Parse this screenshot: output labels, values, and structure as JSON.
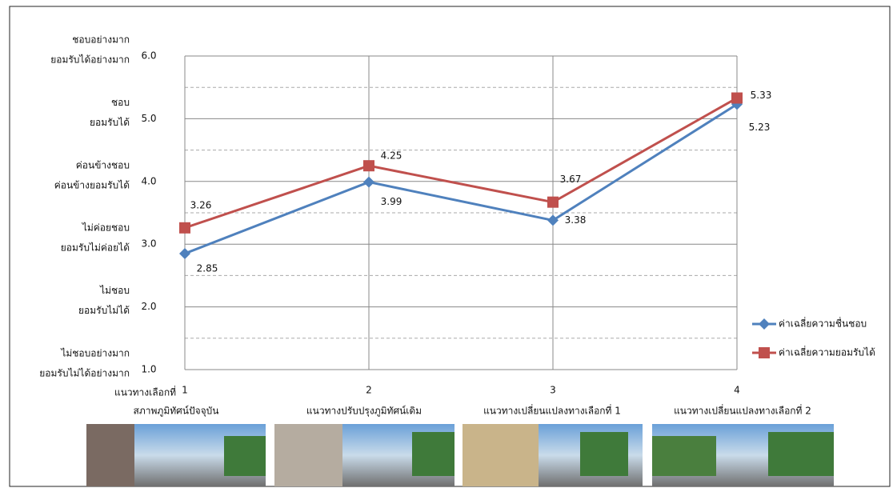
{
  "chart_data": {
    "type": "line",
    "categories": [
      "1",
      "2",
      "3",
      "4"
    ],
    "x_prefix": "แนวทางเลือกที่",
    "category_descriptions": [
      "สภาพภูมิทัศน์ปัจจุบัน",
      "แนวทางปรับปรุงภูมิทัศน์เดิม",
      "แนวทางเปลี่ยนแปลงทางเลือกที่ 1",
      "แนวทางเปลี่ยนแปลงทางเลือกที่ 2"
    ],
    "series": [
      {
        "name": "ค่าเฉลี่ยความชื่นชอบ",
        "color": "#4f81bd",
        "marker": "diamond",
        "values": [
          2.85,
          3.99,
          3.38,
          5.23
        ]
      },
      {
        "name": "ค่าเฉลี่ยความยอมรับได้",
        "color": "#c0504d",
        "marker": "square",
        "values": [
          3.26,
          4.25,
          3.67,
          5.33
        ]
      }
    ],
    "ylim": [
      1,
      6
    ],
    "yticks": [
      {
        "value": 1,
        "label": "1.0"
      },
      {
        "value": 2,
        "label": "2.0"
      },
      {
        "value": 3,
        "label": "3.0"
      },
      {
        "value": 4,
        "label": "4.0"
      },
      {
        "value": 5,
        "label": "5.0"
      },
      {
        "value": 6,
        "label": "6.0"
      }
    ],
    "minor_yticks": [
      1.5,
      2.5,
      3.5,
      4.5,
      5.5
    ],
    "y_level_labels": [
      [
        "ไม่ชอบอย่างมาก",
        "ยอมรับไม่ได้อย่างมาก"
      ],
      [
        "ไม่ชอบ",
        "ยอมรับไม่ได้"
      ],
      [
        "ไม่ค่อยชอบ",
        "ยอมรับไม่ค่อยได้"
      ],
      [
        "ค่อนข้างชอบ",
        "ค่อนข้างยอมรับได้"
      ],
      [
        "ชอบ",
        "ยอมรับได้"
      ],
      [
        "ชอบอย่างมาก",
        "ยอมรับได้อย่างมาก"
      ]
    ],
    "grid": true,
    "legend": "right"
  }
}
